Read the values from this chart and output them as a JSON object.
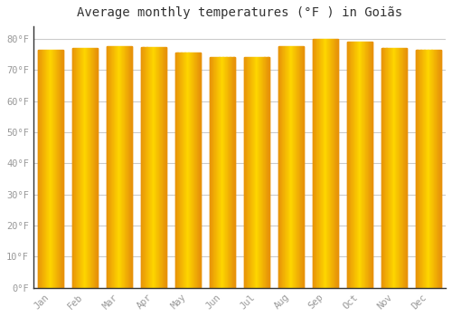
{
  "months": [
    "Jan",
    "Feb",
    "Mar",
    "Apr",
    "May",
    "Jun",
    "Jul",
    "Aug",
    "Sep",
    "Oct",
    "Nov",
    "Dec"
  ],
  "values": [
    76.5,
    77.0,
    77.7,
    77.2,
    75.5,
    74.0,
    74.0,
    77.5,
    80.0,
    79.0,
    77.0,
    76.5
  ],
  "bar_color": "#FFA500",
  "bar_color_center": "#FFD700",
  "bar_edge_color": "#E8920A",
  "background_color": "#FFFFFF",
  "grid_color": "#CCCCCC",
  "title": "Average monthly temperatures (°F ) in Goiãs",
  "title_fontsize": 10,
  "ylabel_ticks": [
    "0°F",
    "10°F",
    "20°F",
    "30°F",
    "40°F",
    "50°F",
    "60°F",
    "70°F",
    "80°F"
  ],
  "ytick_values": [
    0,
    10,
    20,
    30,
    40,
    50,
    60,
    70,
    80
  ],
  "ylim": [
    0,
    84
  ],
  "tick_fontsize": 7.5,
  "tick_color": "#999999",
  "title_color": "#333333"
}
